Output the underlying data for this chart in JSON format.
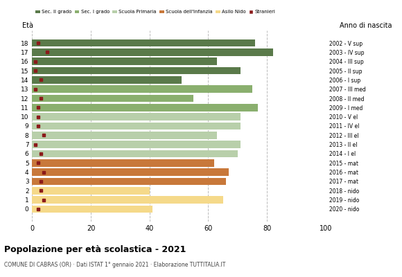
{
  "ages": [
    18,
    17,
    16,
    15,
    14,
    13,
    12,
    11,
    10,
    9,
    8,
    7,
    6,
    5,
    4,
    3,
    2,
    1,
    0
  ],
  "years": [
    "2002 - V sup",
    "2003 - IV sup",
    "2004 - III sup",
    "2005 - II sup",
    "2006 - I sup",
    "2007 - III med",
    "2008 - II med",
    "2009 - I med",
    "2010 - V el",
    "2011 - IV el",
    "2012 - III el",
    "2013 - II el",
    "2014 - I el",
    "2015 - mat",
    "2016 - mat",
    "2017 - mat",
    "2018 - nido",
    "2019 - nido",
    "2020 - nido"
  ],
  "bar_values": [
    76,
    82,
    63,
    71,
    51,
    75,
    55,
    77,
    71,
    71,
    63,
    71,
    70,
    62,
    67,
    66,
    40,
    65,
    41
  ],
  "bar_colors": [
    "#5a7a4a",
    "#5a7a4a",
    "#5a7a4a",
    "#5a7a4a",
    "#5a7a4a",
    "#8aaf6e",
    "#8aaf6e",
    "#8aaf6e",
    "#b8cfaa",
    "#b8cfaa",
    "#b8cfaa",
    "#b8cfaa",
    "#b8cfaa",
    "#c8783a",
    "#c8783a",
    "#c8783a",
    "#f5d98a",
    "#f5d98a",
    "#f5d98a"
  ],
  "stranieri_values": [
    2,
    5,
    1,
    1,
    3,
    1,
    3,
    2,
    2,
    2,
    4,
    1,
    3,
    2,
    4,
    3,
    3,
    4,
    2
  ],
  "stranieri_color": "#8b1a1a",
  "legend_labels": [
    "Sec. II grado",
    "Sec. I grado",
    "Scuola Primaria",
    "Scuola dell'Infanzia",
    "Asilo Nido",
    "Stranieri"
  ],
  "legend_colors": [
    "#5a7a4a",
    "#8aaf6e",
    "#b8cfaa",
    "#c8783a",
    "#f5d98a",
    "#8b1a1a"
  ],
  "title": "Popolazione per età scolastica - 2021",
  "subtitle": "COMUNE DI CABRAS (OR) · Dati ISTAT 1° gennaio 2021 · Elaborazione TUTTITALIA.IT",
  "ylabel_age": "Età",
  "ylabel_year": "Anno di nascita",
  "xlim": [
    0,
    100
  ],
  "xticks": [
    0,
    20,
    40,
    60,
    80,
    100
  ],
  "background_color": "#ffffff",
  "grid_color": "#bbbbbb"
}
